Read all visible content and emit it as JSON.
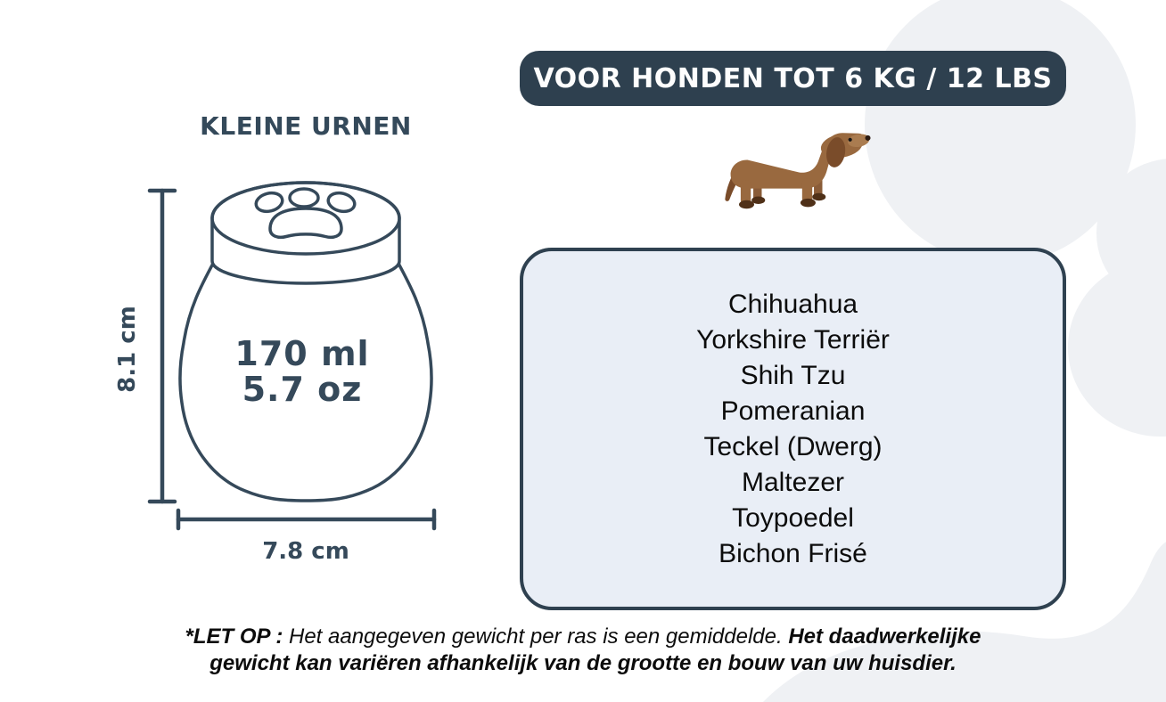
{
  "banner": {
    "label": "VOOR HONDEN TOT 6 KG / 12 LBS"
  },
  "urn_section": {
    "title": "KLEINE URNEN",
    "volume_ml": "170 ml",
    "volume_oz": "5.7 oz",
    "height_label": "8.1 cm",
    "width_label": "7.8 cm"
  },
  "breed_box": {
    "breeds": [
      "Chihuahua",
      "Yorkshire Terriër",
      "Shih Tzu",
      "Pomeranian",
      "Teckel (Dwerg)",
      "Maltezer",
      "Toypoedel",
      "Bichon Frisé"
    ]
  },
  "footer": {
    "line1_bold_prefix": "*LET OP : ",
    "line1_normal": "Het aangegeven gewicht per ras is een gemiddelde. ",
    "line1_bold_suffix": "Het daadwerkelijke",
    "line2_bold": "gewicht kan variëren afhankelijk van de grootte en bouw van uw huisdier."
  },
  "icons": {
    "paw_watermark": "paw-print-watermark",
    "urn_drawing": "small-urn-line-drawing",
    "dog": "dachshund-illustration"
  },
  "colors": {
    "dark_slate": "#2e404f",
    "line_ink": "#35495a",
    "box_background": "#e9eef6",
    "box_border": "#2f4150",
    "watermark_gray": "#eff1f4",
    "text_black": "#0c0c0c",
    "dog_body_brown": "#99693f",
    "dog_dark_brown": "#7a4c2a",
    "dog_muzzle_tan": "#aa7c50",
    "dog_paw_dark": "#4f3018",
    "white": "#ffffff"
  }
}
